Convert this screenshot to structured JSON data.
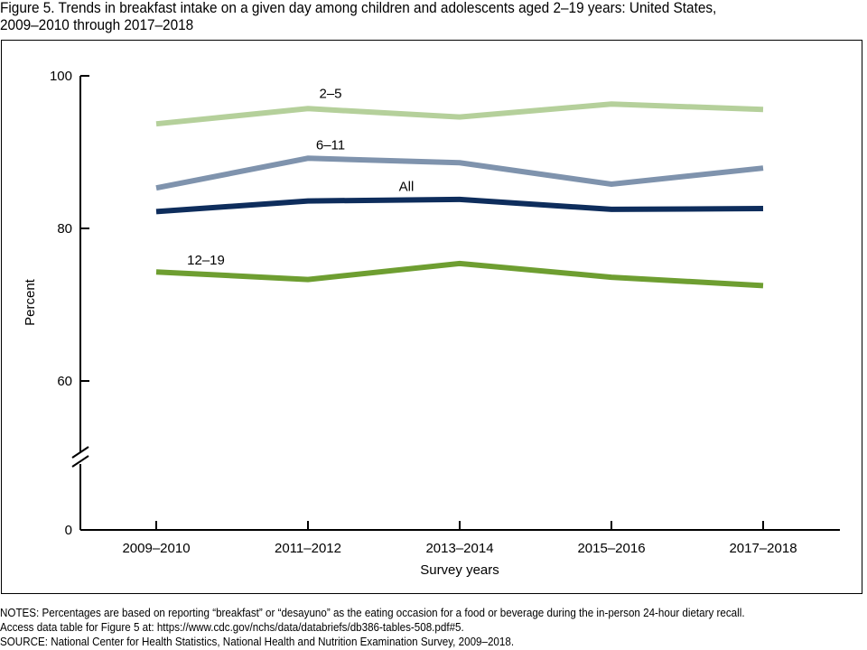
{
  "title_line1": "Figure 5. Trends in breakfast intake on a given day among children and adolescents aged 2–19 years: United States,",
  "title_line2": "2009–2010 through 2017–2018",
  "notes": [
    "NOTES: Percentages are based on reporting “breakfast” or “desayuno” as the eating occasion for a food or beverage during the in-person 24-hour dietary recall.",
    "Access data table for Figure 5 at: https://www.cdc.gov/nchs/data/databriefs/db386-tables-508.pdf#5.",
    "SOURCE: National Center for Health Statistics, National Health and Nutrition Examination Survey, 2009–2018."
  ],
  "chart_data": {
    "type": "line",
    "title": "Trends in breakfast intake on a given day among children and adolescents aged 2–19 years: United States, 2009–2010 through 2017–2018",
    "xlabel": "Survey years",
    "ylabel": "Percent",
    "categories": [
      "2009–2010",
      "2011–2012",
      "2013–2014",
      "2015–2016",
      "2017–2018"
    ],
    "yticks": [
      "0",
      "60",
      "80",
      "100"
    ],
    "ylim": [
      60,
      100
    ],
    "axis_break": true,
    "grid": false,
    "legend": "inline labels",
    "series": [
      {
        "name": "2–5",
        "label": "2–5",
        "color": "#b5d09b",
        "values": [
          93.7,
          95.7,
          94.6,
          96.3,
          95.6
        ]
      },
      {
        "name": "6–11",
        "label": "6–11",
        "color": "#7f93ad",
        "values": [
          85.3,
          89.2,
          88.6,
          85.8,
          87.9
        ]
      },
      {
        "name": "All",
        "label": "All",
        "color": "#0e2d5c",
        "values": [
          82.2,
          83.6,
          83.8,
          82.5,
          82.6
        ]
      },
      {
        "name": "12–19",
        "label": "12–19",
        "color": "#6e9e31",
        "values": [
          74.3,
          73.3,
          75.4,
          73.6,
          72.5
        ]
      }
    ]
  }
}
